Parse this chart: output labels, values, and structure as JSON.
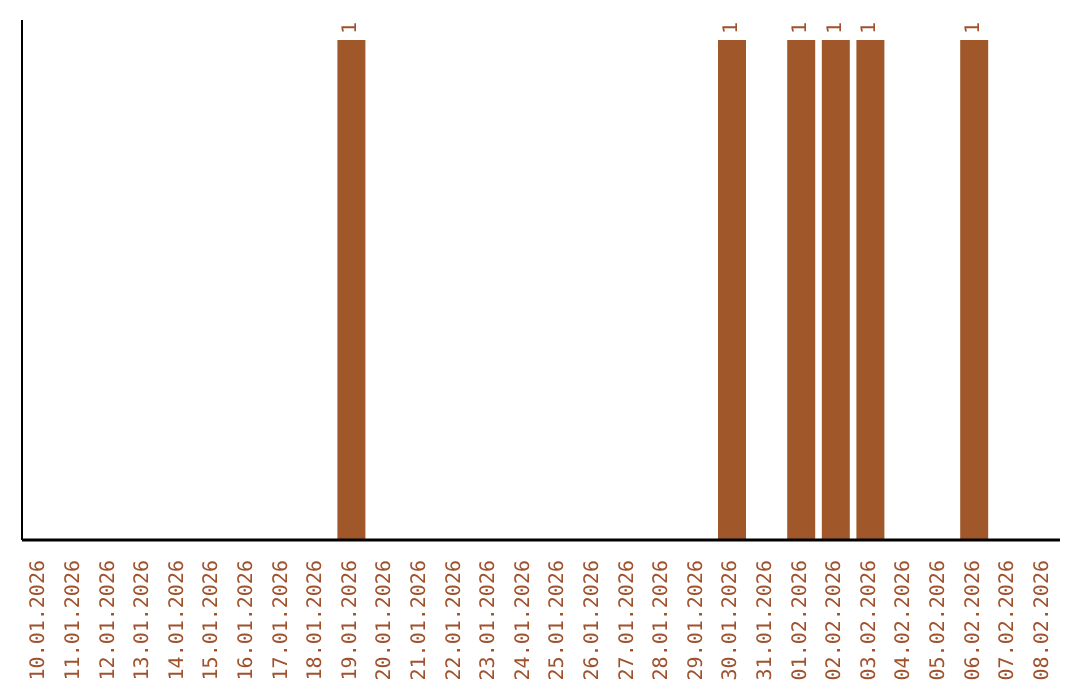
{
  "chart_data": {
    "type": "bar",
    "categories": [
      "10.01.2026",
      "11.01.2026",
      "12.01.2026",
      "13.01.2026",
      "14.01.2026",
      "15.01.2026",
      "16.01.2026",
      "17.01.2026",
      "18.01.2026",
      "19.01.2026",
      "20.01.2026",
      "21.01.2026",
      "22.01.2026",
      "23.01.2026",
      "24.01.2026",
      "25.01.2026",
      "26.01.2026",
      "27.01.2026",
      "28.01.2026",
      "29.01.2026",
      "30.01.2026",
      "31.01.2026",
      "01.02.2026",
      "02.02.2026",
      "03.02.2026",
      "04.02.2026",
      "05.02.2026",
      "06.02.2026",
      "07.02.2026",
      "08.02.2026"
    ],
    "values": [
      0,
      0,
      0,
      0,
      0,
      0,
      0,
      0,
      0,
      1,
      0,
      0,
      0,
      0,
      0,
      0,
      0,
      0,
      0,
      0,
      1,
      0,
      1,
      1,
      1,
      0,
      0,
      1,
      0,
      0
    ],
    "value_labels": [
      null,
      null,
      null,
      null,
      null,
      null,
      null,
      null,
      null,
      "1",
      null,
      null,
      null,
      null,
      null,
      null,
      null,
      null,
      null,
      null,
      "1",
      null,
      "1",
      "1",
      "1",
      null,
      null,
      "1",
      null,
      null
    ],
    "color": "#a0572a",
    "ylim": [
      0,
      1.04
    ],
    "tick_labels": "x",
    "grid": false,
    "legend": false
  }
}
